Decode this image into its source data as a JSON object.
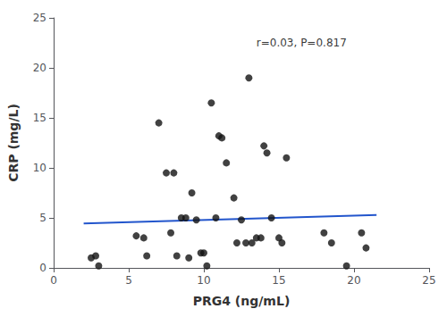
{
  "chart_data": {
    "type": "scatter",
    "xlabel": "PRG4 (ng/mL)",
    "ylabel": "CRP (mg/L)",
    "xlim": [
      0,
      25
    ],
    "ylim": [
      0,
      25
    ],
    "xticks": [
      0,
      5,
      10,
      15,
      20,
      25
    ],
    "yticks": [
      0,
      5,
      10,
      15,
      20,
      25
    ],
    "grid": false,
    "series": [
      {
        "type": "scatter",
        "color": "#111111",
        "marker": "circle",
        "x": [
          2.5,
          2.8,
          3.0,
          5.5,
          6.0,
          6.2,
          7.0,
          7.5,
          7.8,
          8.0,
          8.2,
          8.5,
          8.8,
          9.0,
          9.2,
          9.5,
          9.8,
          10.0,
          10.2,
          10.5,
          10.8,
          11.0,
          11.2,
          11.5,
          12.0,
          12.2,
          12.5,
          12.8,
          13.0,
          13.2,
          13.5,
          13.8,
          14.0,
          14.2,
          14.5,
          15.0,
          15.2,
          15.5,
          18.0,
          18.5,
          19.5,
          20.5,
          20.8
        ],
        "values": [
          1.0,
          1.2,
          0.2,
          3.2,
          3.0,
          1.2,
          14.5,
          9.5,
          3.5,
          9.5,
          1.2,
          5.0,
          5.0,
          1.0,
          7.5,
          4.8,
          1.5,
          1.5,
          0.2,
          16.5,
          5.0,
          13.2,
          13.0,
          10.5,
          7.0,
          2.5,
          4.8,
          2.5,
          19.0,
          2.5,
          3.0,
          3.0,
          12.2,
          11.5,
          5.0,
          3.0,
          2.5,
          11.0,
          3.5,
          2.5,
          0.2,
          3.5,
          2.0
        ]
      },
      {
        "type": "line",
        "color": "#2255cc",
        "line_style": "solid",
        "x": [
          2.0,
          21.5
        ],
        "values": [
          4.45,
          5.3
        ]
      }
    ],
    "annotations": [
      {
        "text": "r=0.03, P=0.817",
        "x": 13.5,
        "y": 22.5
      }
    ]
  }
}
